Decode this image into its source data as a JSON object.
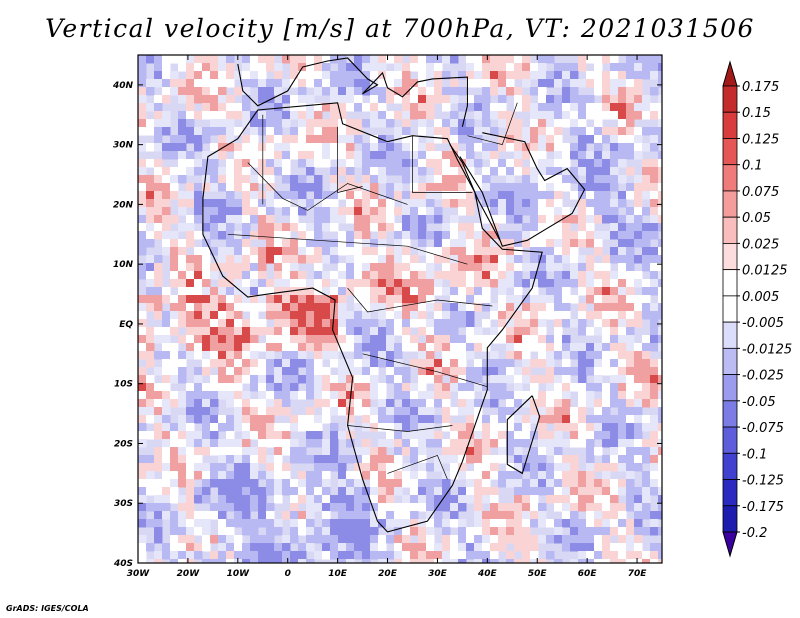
{
  "title": "Vertical velocity [m/s] at 700hPa, VT: 2021031506",
  "credit": "GrADS: IGES/COLA",
  "chart_data": {
    "type": "heatmap",
    "variable": "Vertical velocity",
    "units": "m/s",
    "level": "700hPa",
    "valid_time": "2021031506",
    "lon_range": [
      -30,
      75
    ],
    "lat_range": [
      -40,
      45
    ],
    "x_ticks": [
      {
        "value": -30,
        "label": "30W"
      },
      {
        "value": -20,
        "label": "20W"
      },
      {
        "value": -10,
        "label": "10W"
      },
      {
        "value": 0,
        "label": "0"
      },
      {
        "value": 10,
        "label": "10E"
      },
      {
        "value": 20,
        "label": "20E"
      },
      {
        "value": 30,
        "label": "30E"
      },
      {
        "value": 40,
        "label": "40E"
      },
      {
        "value": 50,
        "label": "50E"
      },
      {
        "value": 60,
        "label": "60E"
      },
      {
        "value": 70,
        "label": "70E"
      }
    ],
    "y_ticks": [
      {
        "value": 40,
        "label": "40N"
      },
      {
        "value": 30,
        "label": "30N"
      },
      {
        "value": 20,
        "label": "20N"
      },
      {
        "value": 10,
        "label": "10N"
      },
      {
        "value": 0,
        "label": "EQ"
      },
      {
        "value": -10,
        "label": "10S"
      },
      {
        "value": -20,
        "label": "20S"
      },
      {
        "value": -30,
        "label": "30S"
      },
      {
        "value": -40,
        "label": "40S"
      }
    ],
    "colorbar": {
      "labels": [
        "0.175",
        "0.15",
        "0.125",
        "0.1",
        "0.075",
        "0.05",
        "0.025",
        "0.0125",
        "0.005",
        "-0.005",
        "-0.0125",
        "-0.025",
        "-0.05",
        "-0.075",
        "-0.1",
        "-0.125",
        "-0.175",
        "-0.2"
      ],
      "colors": [
        "#a41a1a",
        "#c42b2b",
        "#d83c3c",
        "#e55656",
        "#ef7b7b",
        "#f59d9d",
        "#f9bdbd",
        "#fcdcdc",
        "#ffffff",
        "#ffffff",
        "#dcdcfb",
        "#bcbcf5",
        "#9c9cee",
        "#7c7ce6",
        "#5e5edd",
        "#4141d0",
        "#2a2ac0",
        "#1c1cae",
        "#3a00a0"
      ]
    }
  }
}
